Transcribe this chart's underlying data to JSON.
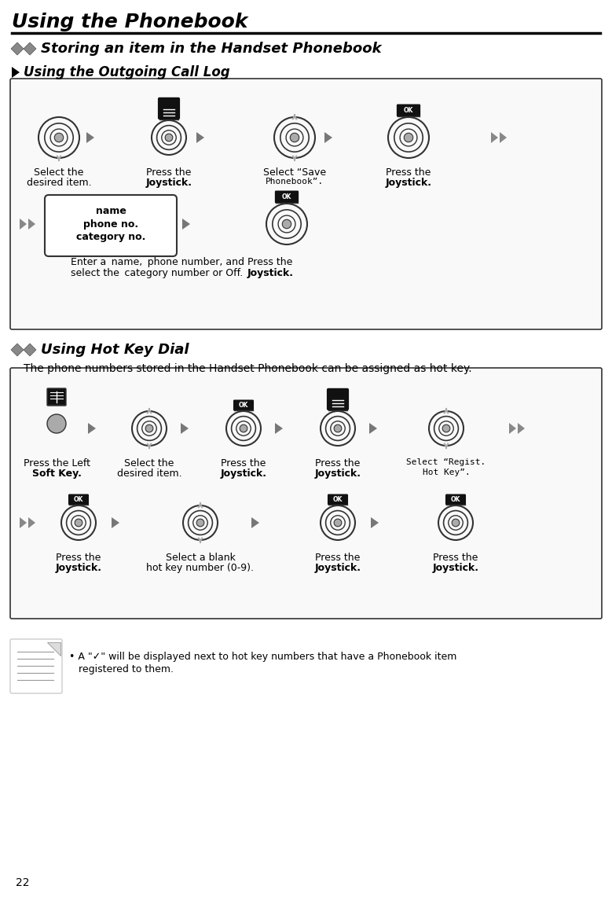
{
  "page_title": "Using the Phonebook",
  "page_number": "22",
  "section1_title": "Storing an item in the Handset Phonebook",
  "section1_subtitle": "Using the Outgoing Call Log",
  "section2_title": "Using Hot Key Dial",
  "section2_desc": "The phone numbers stored in the Handset Phonebook can be assigned as hot key.",
  "note_text": "A \"✓\" will be displayed next to hot key numbers that have a Phonebook item registered to them.",
  "bg_color": "#ffffff",
  "box_bg": "#f9f9f9",
  "border_color": "#333333",
  "arrow_color": "#888888",
  "ok_bg": "#111111",
  "icon_outline": "#333333"
}
